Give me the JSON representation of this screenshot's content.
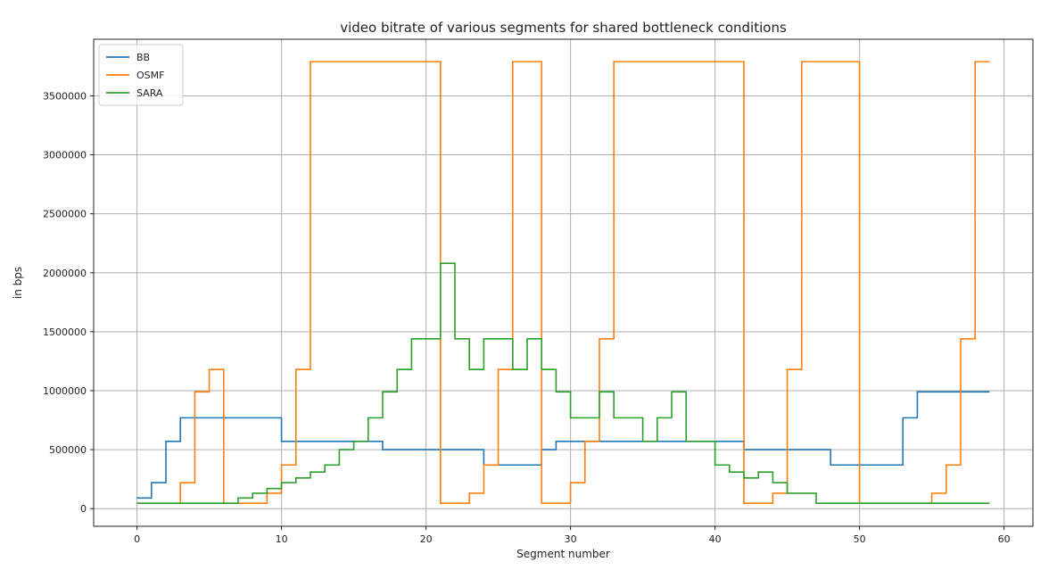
{
  "chart_data": {
    "type": "line",
    "step": "post",
    "title": "video bitrate of various segments for shared bottleneck conditions",
    "xlabel": "Segment number",
    "ylabel": "in bps",
    "xlim": [
      -3,
      62
    ],
    "ylim": [
      -150000,
      3980000
    ],
    "xticks": [
      0,
      10,
      20,
      30,
      40,
      50,
      60
    ],
    "yticks": [
      0,
      500000,
      1000000,
      1500000,
      2000000,
      2500000,
      3000000,
      3500000
    ],
    "xtick_labels": [
      "0",
      "10",
      "20",
      "30",
      "40",
      "50",
      "60"
    ],
    "ytick_labels": [
      "0",
      "500000",
      "1000000",
      "1500000",
      "2000000",
      "2500000",
      "3000000",
      "3500000"
    ],
    "grid": true,
    "legend_position": "upper-left",
    "x": [
      0,
      1,
      2,
      3,
      4,
      5,
      6,
      7,
      8,
      9,
      10,
      11,
      12,
      13,
      14,
      15,
      16,
      17,
      18,
      19,
      20,
      21,
      22,
      23,
      24,
      25,
      26,
      27,
      28,
      29,
      30,
      31,
      32,
      33,
      34,
      35,
      36,
      37,
      38,
      39,
      40,
      41,
      42,
      43,
      44,
      45,
      46,
      47,
      48,
      49,
      50,
      51,
      52,
      53,
      54,
      55,
      56,
      57,
      58,
      59
    ],
    "series": [
      {
        "name": "BB",
        "color": "#1f77b4",
        "values": [
          90000,
          220000,
          570000,
          770000,
          770000,
          770000,
          770000,
          770000,
          770000,
          770000,
          570000,
          570000,
          570000,
          570000,
          570000,
          570000,
          570000,
          500000,
          500000,
          500000,
          500000,
          500000,
          500000,
          500000,
          370000,
          370000,
          370000,
          370000,
          500000,
          570000,
          570000,
          570000,
          570000,
          570000,
          570000,
          570000,
          570000,
          570000,
          570000,
          570000,
          570000,
          570000,
          500000,
          500000,
          500000,
          500000,
          500000,
          500000,
          370000,
          370000,
          370000,
          370000,
          370000,
          770000,
          990000,
          990000,
          990000,
          990000,
          990000,
          990000
        ]
      },
      {
        "name": "OSMF",
        "color": "#ff7f0e",
        "values": [
          45000,
          45000,
          45000,
          220000,
          990000,
          1180000,
          45000,
          45000,
          45000,
          130000,
          370000,
          1180000,
          3790000,
          3790000,
          3790000,
          3790000,
          3790000,
          3790000,
          3790000,
          3790000,
          3790000,
          45000,
          45000,
          130000,
          370000,
          1180000,
          3790000,
          3790000,
          45000,
          45000,
          220000,
          570000,
          1440000,
          3790000,
          3790000,
          3790000,
          3790000,
          3790000,
          3790000,
          3790000,
          3790000,
          3790000,
          45000,
          45000,
          130000,
          1180000,
          3790000,
          3790000,
          3790000,
          3790000,
          45000,
          45000,
          45000,
          45000,
          45000,
          130000,
          370000,
          1440000,
          3790000,
          3790000
        ]
      },
      {
        "name": "SARA",
        "color": "#2ca02c",
        "values": [
          45000,
          45000,
          45000,
          45000,
          45000,
          45000,
          45000,
          90000,
          130000,
          170000,
          220000,
          260000,
          310000,
          370000,
          500000,
          570000,
          770000,
          990000,
          1180000,
          1440000,
          1440000,
          2080000,
          1440000,
          1180000,
          1440000,
          1440000,
          1180000,
          1440000,
          1180000,
          990000,
          770000,
          770000,
          990000,
          770000,
          770000,
          570000,
          770000,
          990000,
          570000,
          570000,
          370000,
          310000,
          260000,
          310000,
          220000,
          130000,
          130000,
          45000,
          45000,
          45000,
          45000,
          45000,
          45000,
          45000,
          45000,
          45000,
          45000,
          45000,
          45000,
          45000
        ]
      }
    ]
  }
}
